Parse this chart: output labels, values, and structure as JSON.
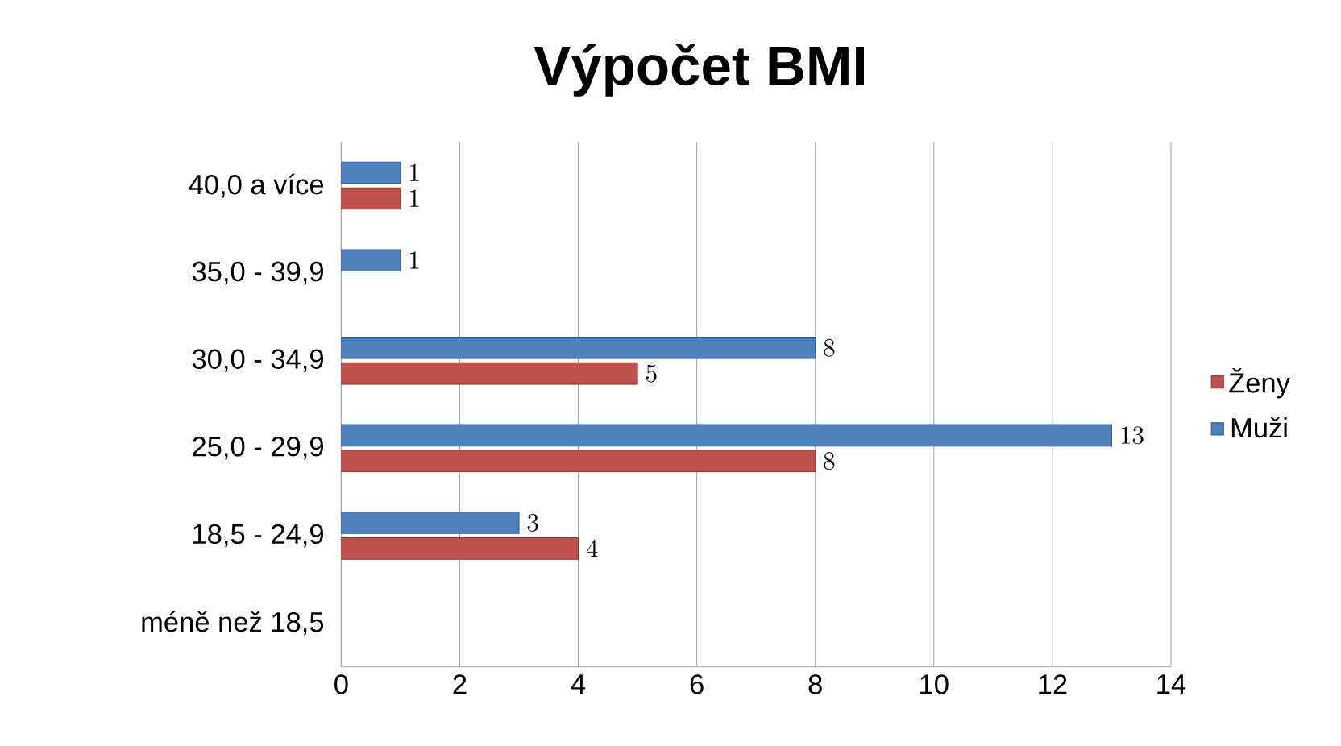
{
  "chart_data": {
    "type": "bar",
    "orientation": "horizontal",
    "title": "Výpočet BMI",
    "categories": [
      "40,0 a více",
      "35,0 - 39,9",
      "30,0 - 34,9",
      "25,0 - 29,9",
      "18,5 - 24,9",
      "méně než 18,5"
    ],
    "series": [
      {
        "name": "Ženy",
        "color": "#c0504d",
        "values": [
          1,
          null,
          5,
          8,
          4,
          null
        ]
      },
      {
        "name": "Muži",
        "color": "#4f81bd",
        "values": [
          1,
          1,
          8,
          13,
          3,
          null
        ]
      }
    ],
    "xlim": [
      0,
      14
    ],
    "xticks": [
      0,
      2,
      4,
      6,
      8,
      10,
      12,
      14
    ],
    "grid": "x",
    "legend": "right",
    "data_labels": true
  }
}
